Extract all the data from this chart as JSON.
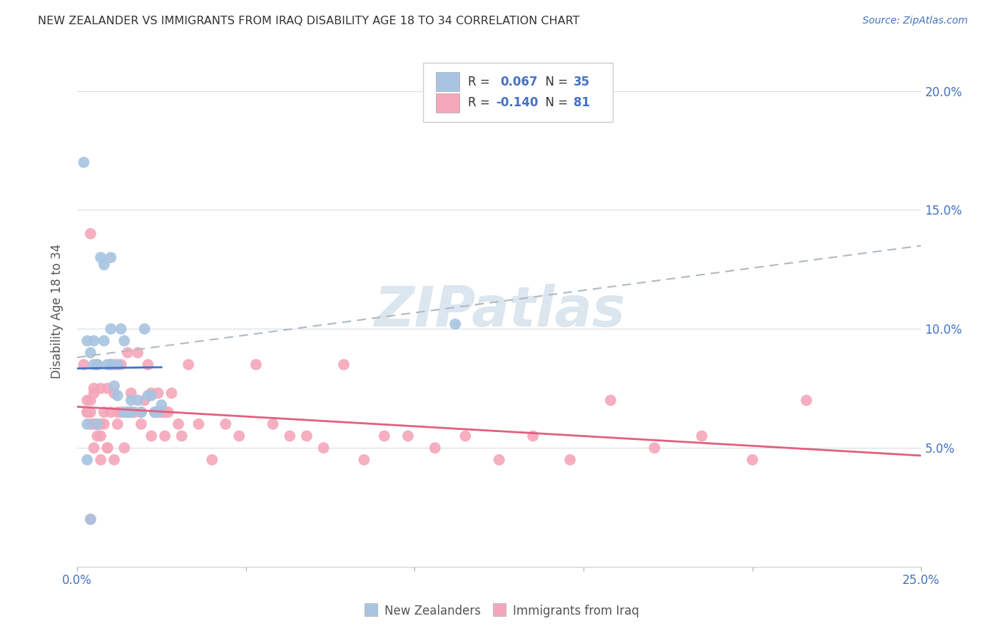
{
  "title": "NEW ZEALANDER VS IMMIGRANTS FROM IRAQ DISABILITY AGE 18 TO 34 CORRELATION CHART",
  "source": "Source: ZipAtlas.com",
  "ylabel": "Disability Age 18 to 34",
  "legend_r_nz": "0.067",
  "legend_n_nz": "35",
  "legend_r_iq": "-0.140",
  "legend_n_iq": "81",
  "legend_label_nz": "New Zealanders",
  "legend_label_iq": "Immigrants from Iraq",
  "nz_color": "#a8c4e0",
  "nz_line_color": "#4472c4",
  "iq_color": "#f4a7b9",
  "iq_line_color": "#e06080",
  "dash_line_color": "#b0b8c0",
  "xlim": [
    0.0,
    0.25
  ],
  "ylim": [
    0.0,
    0.215
  ],
  "xticks": [
    0.0,
    0.25
  ],
  "xtick_labels": [
    "0.0%",
    "25.0%"
  ],
  "yticks": [
    0.05,
    0.1,
    0.15,
    0.2
  ],
  "ytick_labels": [
    "5.0%",
    "10.0%",
    "15.0%",
    "20.0%"
  ],
  "nz_x": [
    0.002,
    0.003,
    0.004,
    0.005,
    0.005,
    0.006,
    0.007,
    0.008,
    0.009,
    0.01,
    0.01,
    0.011,
    0.012,
    0.013,
    0.014,
    0.015,
    0.016,
    0.018,
    0.019,
    0.02,
    0.021,
    0.022,
    0.023,
    0.024,
    0.003,
    0.004,
    0.006,
    0.008,
    0.01,
    0.012,
    0.014,
    0.016,
    0.112,
    0.025,
    0.003
  ],
  "nz_y": [
    0.17,
    0.06,
    0.09,
    0.085,
    0.095,
    0.085,
    0.13,
    0.127,
    0.085,
    0.13,
    0.1,
    0.076,
    0.072,
    0.1,
    0.095,
    0.065,
    0.07,
    0.07,
    0.065,
    0.1,
    0.072,
    0.072,
    0.065,
    0.065,
    0.045,
    0.02,
    0.06,
    0.095,
    0.085,
    0.085,
    0.065,
    0.065,
    0.102,
    0.068,
    0.095
  ],
  "iq_x": [
    0.002,
    0.003,
    0.003,
    0.004,
    0.004,
    0.004,
    0.005,
    0.005,
    0.005,
    0.006,
    0.006,
    0.006,
    0.007,
    0.007,
    0.007,
    0.008,
    0.008,
    0.009,
    0.009,
    0.01,
    0.01,
    0.011,
    0.011,
    0.012,
    0.012,
    0.013,
    0.014,
    0.015,
    0.015,
    0.016,
    0.017,
    0.018,
    0.019,
    0.02,
    0.021,
    0.022,
    0.023,
    0.024,
    0.025,
    0.026,
    0.027,
    0.028,
    0.03,
    0.033,
    0.036,
    0.04,
    0.044,
    0.048,
    0.053,
    0.058,
    0.063,
    0.068,
    0.073,
    0.079,
    0.085,
    0.091,
    0.098,
    0.106,
    0.115,
    0.125,
    0.135,
    0.146,
    0.158,
    0.171,
    0.185,
    0.2,
    0.216,
    0.003,
    0.004,
    0.005,
    0.006,
    0.007,
    0.009,
    0.011,
    0.013,
    0.016,
    0.019,
    0.022,
    0.026,
    0.031,
    0.004
  ],
  "iq_y": [
    0.085,
    0.065,
    0.07,
    0.14,
    0.07,
    0.06,
    0.075,
    0.06,
    0.05,
    0.085,
    0.06,
    0.055,
    0.075,
    0.06,
    0.045,
    0.065,
    0.06,
    0.075,
    0.05,
    0.085,
    0.065,
    0.085,
    0.073,
    0.065,
    0.06,
    0.085,
    0.05,
    0.09,
    0.065,
    0.073,
    0.065,
    0.09,
    0.065,
    0.07,
    0.085,
    0.073,
    0.065,
    0.073,
    0.065,
    0.065,
    0.065,
    0.073,
    0.06,
    0.085,
    0.06,
    0.045,
    0.06,
    0.055,
    0.085,
    0.06,
    0.055,
    0.055,
    0.05,
    0.085,
    0.045,
    0.055,
    0.055,
    0.05,
    0.055,
    0.045,
    0.055,
    0.045,
    0.07,
    0.05,
    0.055,
    0.045,
    0.07,
    0.065,
    0.065,
    0.073,
    0.06,
    0.055,
    0.05,
    0.045,
    0.065,
    0.065,
    0.06,
    0.055,
    0.055,
    0.055,
    0.02
  ],
  "watermark": "ZIPatlas",
  "background_color": "#ffffff",
  "grid_color": "#d8dde6",
  "title_color": "#333333",
  "axis_color": "#4472c4"
}
